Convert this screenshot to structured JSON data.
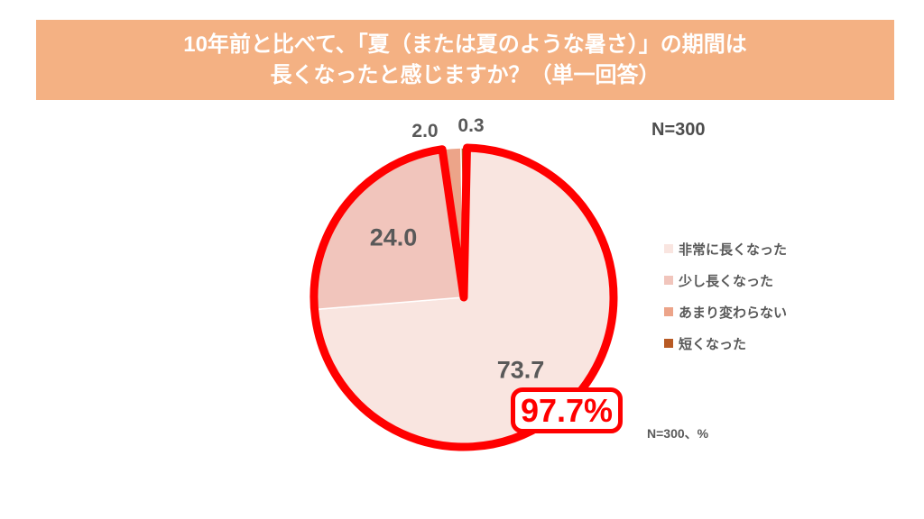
{
  "title": {
    "line1": "10年前と比べて、「夏（または夏のような暑さ）」の期間は",
    "line2": "長くなったと感じますか？（単一回答）",
    "background": "#F4B183",
    "text_color": "#FFFFFF"
  },
  "sample_size_label": "N=300",
  "footnote": "N=300、%",
  "chart_data": {
    "type": "pie",
    "title": "10年前と比べて、「夏（または夏のような暑さ）」の期間は長くなったと感じますか？（単一回答）",
    "categories": [
      "非常に長くなった",
      "少し長くなった",
      "あまり変わらない",
      "短くなった"
    ],
    "values": [
      73.7,
      24.0,
      2.0,
      0.3
    ],
    "labels": [
      "73.7",
      "24.0",
      "2.0",
      "0.3"
    ],
    "colors": [
      "#F9E5E0",
      "#F1C5BC",
      "#ECA489",
      "#B85A24"
    ],
    "unit": "%",
    "n": 300,
    "start_angle_deg": 0,
    "direction": "clockwise",
    "legend_position": "right",
    "label_color": "#595959",
    "highlight": {
      "indices": [
        0,
        1
      ],
      "total_label": "97.7%",
      "outline_color": "#FF0000"
    }
  }
}
